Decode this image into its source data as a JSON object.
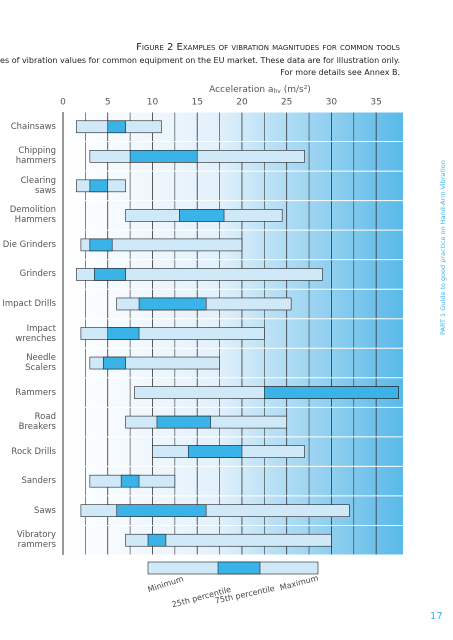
{
  "chart_data": {
    "type": "range_bar",
    "title": "Figure 2 Examples of vibration magnitudes for common tools",
    "subtitle": "Ranges of vibration values for common equipment on the EU market. These data are for illustration only.",
    "note": "For more details see Annex B.",
    "x_label": "Acceleration a",
    "x_label_sub": "hv",
    "x_label_unit": " (m/s²)",
    "categories": [
      "Chainsaws",
      "Chipping\nhammers",
      "Clearing\nsaws",
      "Demolition\nHammers",
      "Die Grinders",
      "Grinders",
      "Impact Drills",
      "Impact\nwrenches",
      "Needle\nScalers",
      "Rammers",
      "Road\nBreakers",
      "Rock Drills",
      "Sanders",
      "Saws",
      "Vibratory\nrammers"
    ],
    "series": [
      {
        "name": "Minimum",
        "values": [
          1.5,
          3,
          1.5,
          7,
          2,
          1.5,
          6,
          2,
          3,
          8,
          7,
          10,
          3,
          2,
          7
        ]
      },
      {
        "name": "25th percentile",
        "values": [
          5,
          7.5,
          3,
          13,
          3,
          3.5,
          8.5,
          5,
          4.5,
          22.5,
          10.5,
          14,
          6.5,
          6,
          9.5
        ]
      },
      {
        "name": "75th percentile",
        "values": [
          7,
          15,
          5,
          18,
          5.5,
          7,
          16,
          8.5,
          7,
          37.5,
          16.5,
          20,
          8.5,
          16,
          11.5
        ]
      },
      {
        "name": "Maximum",
        "values": [
          11,
          27,
          7,
          24.5,
          20,
          29,
          25.5,
          22.5,
          17.5,
          37.5,
          25,
          27,
          12.5,
          32,
          30
        ]
      }
    ],
    "range_color": "#cfe9f8",
    "iqr_color": "#3ab4e8",
    "xlim": [
      0,
      38
    ],
    "xticks": [
      0,
      5,
      10,
      15,
      20,
      25,
      30,
      35
    ],
    "grid": true,
    "side_text": "PART 1 Guide to good practice on Hand-Arm Vibration",
    "page_number": "17"
  }
}
